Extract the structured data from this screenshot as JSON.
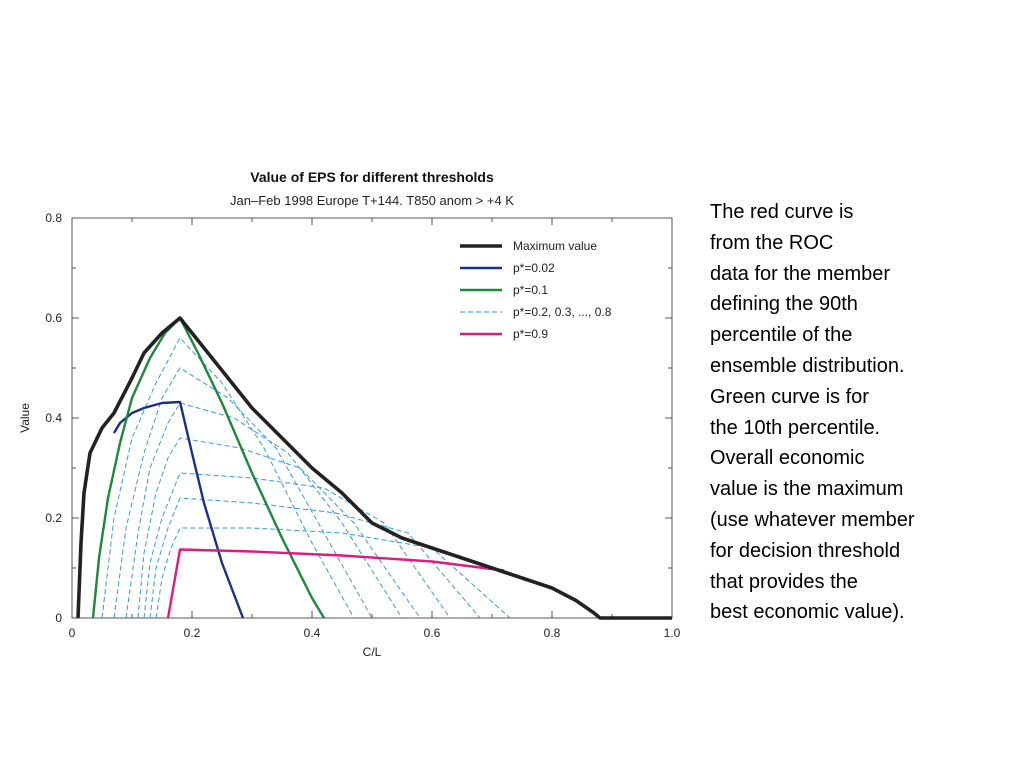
{
  "note": {
    "lines": [
      "The red curve is",
      "from the ROC",
      "data for the member",
      "defining the 90th",
      "percentile of the",
      "ensemble distribution.",
      "Green curve is for",
      "the 10th percentile.",
      "Overall economic",
      "value is the maximum",
      "(use whatever member",
      "for decision threshold",
      "that provides the",
      "best economic value)."
    ]
  },
  "chart_data": {
    "type": "line",
    "title": "Value of EPS for different thresholds",
    "subtitle": "Jan–Feb 1998 Europe T+144. T850 anom > +4 K",
    "xlabel": "C/L",
    "ylabel": "Value",
    "xlim": [
      0,
      1.0
    ],
    "ylim": [
      0,
      0.8
    ],
    "x_ticks": [
      0,
      0.2,
      0.4,
      0.6,
      0.8,
      1.0
    ],
    "x_tick_labels": [
      "0",
      "0.2",
      "0.4",
      "0.6",
      "0.8",
      "1.0"
    ],
    "y_ticks": [
      0,
      0.2,
      0.4,
      0.6,
      0.8
    ],
    "y_tick_labels": [
      "0",
      "0.2",
      "0.4",
      "0.6",
      "0.8"
    ],
    "grid": false,
    "legend_position": "top-right",
    "colors": {
      "max": "#222222",
      "p002": "#1a2f8c",
      "p01": "#1a8a3a",
      "pmid": "#3399e6",
      "p09": "#e0197f",
      "axis": "#555555"
    },
    "series": [
      {
        "name": "Maximum value",
        "color": "#222222",
        "style": "solid-thick",
        "x": [
          0.01,
          0.015,
          0.02,
          0.03,
          0.05,
          0.07,
          0.1,
          0.12,
          0.15,
          0.18,
          0.22,
          0.26,
          0.3,
          0.35,
          0.4,
          0.45,
          0.5,
          0.55,
          0.6,
          0.65,
          0.7,
          0.75,
          0.8,
          0.84,
          0.87,
          0.88,
          1.0
        ],
        "y": [
          0.0,
          0.15,
          0.25,
          0.33,
          0.38,
          0.41,
          0.48,
          0.53,
          0.57,
          0.6,
          0.54,
          0.48,
          0.42,
          0.36,
          0.3,
          0.25,
          0.19,
          0.16,
          0.14,
          0.12,
          0.1,
          0.08,
          0.06,
          0.035,
          0.01,
          0.0,
          0.0
        ]
      },
      {
        "name": "p*=0.02",
        "color": "#1a2f8c",
        "style": "solid",
        "x": [
          0.07,
          0.08,
          0.1,
          0.12,
          0.15,
          0.18,
          0.2,
          0.22,
          0.25,
          0.285
        ],
        "y": [
          0.37,
          0.39,
          0.41,
          0.42,
          0.43,
          0.432,
          0.33,
          0.23,
          0.11,
          0.0
        ]
      },
      {
        "name": "p*=0.1",
        "color": "#1a8a3a",
        "style": "solid",
        "x": [
          0.035,
          0.045,
          0.06,
          0.08,
          0.1,
          0.13,
          0.155,
          0.18,
          0.21,
          0.25,
          0.3,
          0.35,
          0.4,
          0.42
        ],
        "y": [
          0.0,
          0.12,
          0.24,
          0.35,
          0.44,
          0.52,
          0.57,
          0.6,
          0.53,
          0.43,
          0.29,
          0.16,
          0.04,
          0.0
        ]
      },
      {
        "name": "p*=0.2, 0.3, ..., 0.8",
        "color": "#3399e6",
        "style": "dashed",
        "curves": [
          {
            "x": [
              0.05,
              0.07,
              0.1,
              0.14,
              0.18,
              0.25,
              0.32,
              0.4,
              0.47
            ],
            "y": [
              0.0,
              0.2,
              0.36,
              0.47,
              0.56,
              0.47,
              0.34,
              0.15,
              0.0
            ]
          },
          {
            "x": [
              0.07,
              0.09,
              0.12,
              0.15,
              0.18,
              0.26,
              0.34,
              0.42,
              0.5
            ],
            "y": [
              0.0,
              0.18,
              0.33,
              0.44,
              0.5,
              0.44,
              0.34,
              0.17,
              0.0
            ]
          },
          {
            "x": [
              0.09,
              0.11,
              0.13,
              0.16,
              0.18,
              0.27,
              0.36,
              0.45,
              0.55
            ],
            "y": [
              0.0,
              0.17,
              0.3,
              0.39,
              0.43,
              0.4,
              0.33,
              0.19,
              0.0
            ]
          },
          {
            "x": [
              0.11,
              0.12,
              0.14,
              0.16,
              0.18,
              0.28,
              0.38,
              0.47,
              0.58
            ],
            "y": [
              0.0,
              0.13,
              0.25,
              0.32,
              0.36,
              0.34,
              0.3,
              0.19,
              0.0
            ]
          },
          {
            "x": [
              0.12,
              0.13,
              0.15,
              0.17,
              0.18,
              0.3,
              0.42,
              0.52,
              0.63
            ],
            "y": [
              0.0,
              0.11,
              0.2,
              0.26,
              0.29,
              0.28,
              0.26,
              0.19,
              0.0
            ]
          },
          {
            "x": [
              0.13,
              0.14,
              0.16,
              0.18,
              0.3,
              0.44,
              0.56,
              0.68
            ],
            "y": [
              0.0,
              0.1,
              0.18,
              0.24,
              0.23,
              0.21,
              0.17,
              0.0
            ]
          },
          {
            "x": [
              0.14,
              0.15,
              0.165,
              0.18,
              0.3,
              0.45,
              0.6,
              0.73
            ],
            "y": [
              0.0,
              0.08,
              0.14,
              0.18,
              0.18,
              0.17,
              0.14,
              0.0
            ]
          }
        ]
      },
      {
        "name": "p*=0.9",
        "color": "#e0197f",
        "style": "solid",
        "x": [
          0.16,
          0.18,
          0.3,
          0.45,
          0.6,
          0.72
        ],
        "y": [
          0.0,
          0.137,
          0.133,
          0.125,
          0.113,
          0.095
        ]
      }
    ]
  }
}
